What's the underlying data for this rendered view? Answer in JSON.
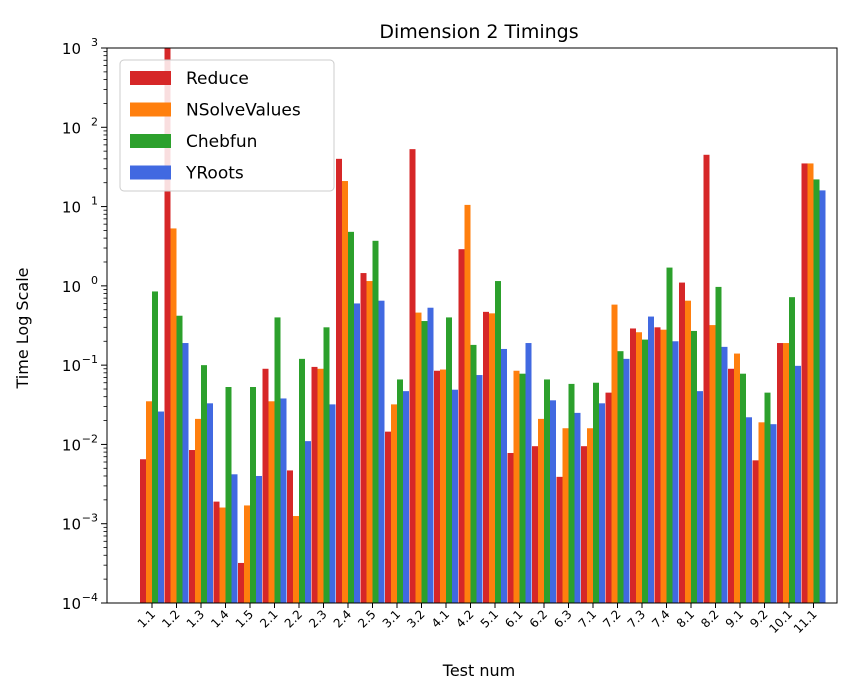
{
  "chart_data": {
    "type": "bar",
    "title": "Dimension 2 Timings",
    "xlabel": "Test num",
    "ylabel": "Time Log Scale",
    "yscale": "log",
    "ylim": [
      0.0001,
      1000
    ],
    "yticks": [
      {
        "base": "10",
        "exp": "−4"
      },
      {
        "base": "10",
        "exp": "−3"
      },
      {
        "base": "10",
        "exp": "−2"
      },
      {
        "base": "10",
        "exp": "−1"
      },
      {
        "base": "10",
        "exp": "0"
      },
      {
        "base": "10",
        "exp": "1"
      },
      {
        "base": "10",
        "exp": "2"
      },
      {
        "base": "10",
        "exp": "3"
      }
    ],
    "legend_position": "top-left",
    "grid": false,
    "categories": [
      "1.1",
      "1.2",
      "1.3",
      "1.4",
      "1.5",
      "2.1",
      "2.2",
      "2.3",
      "2.4",
      "2.5",
      "3.1",
      "3.2",
      "4.1",
      "4.2",
      "5.1",
      "6.1",
      "6.2",
      "6.3",
      "7.1",
      "7.2",
      "7.3",
      "7.4",
      "8.1",
      "8.2",
      "9.1",
      "9.2",
      "10.1",
      "11.1"
    ],
    "series": [
      {
        "name": "Reduce",
        "color": "#d62728",
        "values": [
          0.0065,
          1500,
          0.0085,
          0.0019,
          0.00032,
          0.09,
          0.0047,
          0.095,
          40,
          1.45,
          0.0145,
          53,
          0.085,
          2.9,
          0.47,
          0.0078,
          0.0095,
          0.0039,
          0.0095,
          0.045,
          0.29,
          0.3,
          1.1,
          45,
          0.09,
          0.0063,
          0.19,
          35
        ]
      },
      {
        "name": "NSolveValues",
        "color": "#ff7f0e",
        "values": [
          0.035,
          5.3,
          0.021,
          0.0016,
          0.0017,
          0.035,
          0.00125,
          0.09,
          21,
          1.15,
          0.032,
          0.46,
          0.088,
          10.5,
          0.45,
          0.085,
          0.021,
          0.016,
          0.016,
          0.58,
          0.26,
          0.28,
          0.65,
          0.32,
          0.14,
          0.019,
          0.19,
          35
        ]
      },
      {
        "name": "Chebfun",
        "color": "#2ca02c",
        "values": [
          0.85,
          0.42,
          0.1,
          0.053,
          0.053,
          0.4,
          0.12,
          0.3,
          4.8,
          3.7,
          0.066,
          0.36,
          0.4,
          0.18,
          1.15,
          0.078,
          0.066,
          0.058,
          0.06,
          0.15,
          0.21,
          1.7,
          0.27,
          0.97,
          0.078,
          0.045,
          0.72,
          22
        ]
      },
      {
        "name": "YRoots",
        "color": "#4169e1",
        "values": [
          0.026,
          0.19,
          0.033,
          0.0042,
          0.004,
          0.038,
          0.011,
          0.032,
          0.6,
          0.65,
          0.047,
          0.53,
          0.049,
          0.075,
          0.16,
          0.19,
          0.036,
          0.025,
          0.033,
          0.12,
          0.41,
          0.2,
          0.047,
          0.17,
          0.022,
          0.018,
          0.098,
          16
        ]
      }
    ]
  }
}
